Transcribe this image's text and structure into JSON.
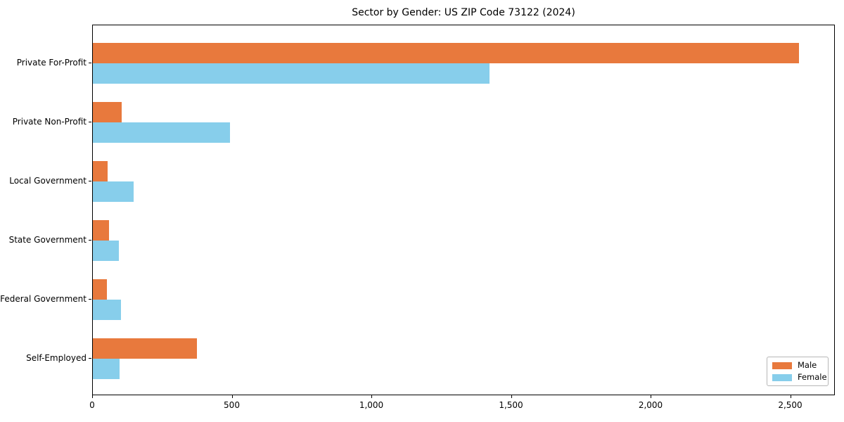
{
  "chart_data": {
    "type": "bar",
    "orientation": "horizontal",
    "title": "Sector by Gender: US ZIP Code 73122 (2024)",
    "categories": [
      "Private For-Profit",
      "Private Non-Profit",
      "Local Government",
      "State Government",
      "Federal Government",
      "Self-Employed"
    ],
    "series": [
      {
        "name": "Male",
        "color": "#e8793d",
        "values": [
          2530,
          103,
          53,
          58,
          50,
          373
        ]
      },
      {
        "name": "Female",
        "color": "#87ceeb",
        "values": [
          1421,
          490,
          146,
          93,
          100,
          96
        ]
      }
    ],
    "xlabel": "",
    "ylabel": "",
    "xlim": [
      0,
      2660
    ],
    "xticks": [
      0,
      500,
      1000,
      1500,
      2000,
      2500
    ],
    "xtick_labels": [
      "0",
      "500",
      "1,000",
      "1,500",
      "2,000",
      "2,500"
    ],
    "grid": false,
    "legend": {
      "position": "lower right",
      "entries": [
        "Male",
        "Female"
      ]
    },
    "colors": {
      "frame": "#000000",
      "text": "#000000",
      "background": "#ffffff"
    }
  }
}
